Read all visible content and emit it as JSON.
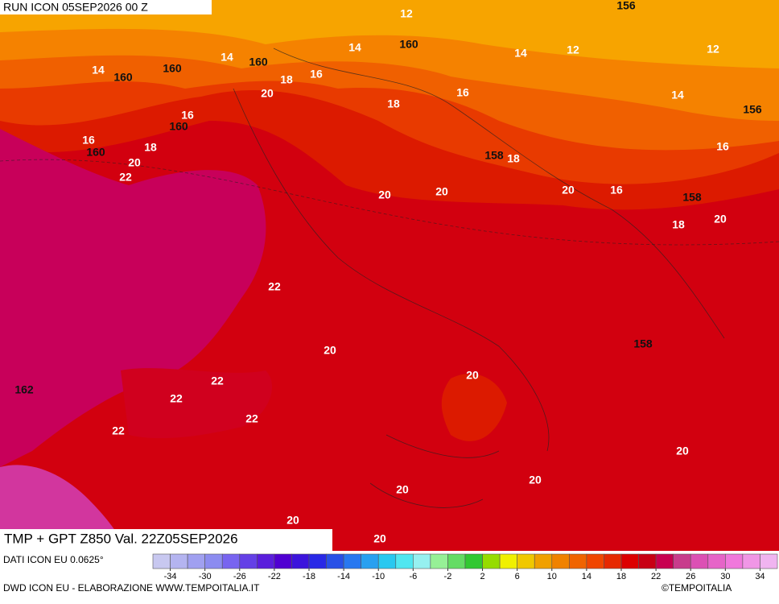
{
  "header": {
    "run": "RUN ICON 05SEP2026 00 Z"
  },
  "map": {
    "title": "TMP + GPT Z850 Val. 22Z05SEP2026",
    "temperature_labels": [
      12,
      12,
      12,
      14,
      14,
      14,
      14,
      14,
      16,
      16,
      16,
      16,
      16,
      16,
      18,
      18,
      18,
      18,
      18,
      20,
      20,
      20,
      20,
      20,
      20,
      20,
      20,
      20,
      20,
      20,
      20,
      20,
      22,
      22,
      22,
      22,
      22,
      22
    ],
    "height_labels": [
      156,
      160,
      160,
      160,
      160,
      160,
      160,
      158,
      158,
      158,
      156,
      162
    ]
  },
  "legend": {
    "source": "DATI ICON EU 0.0625°",
    "colors": [
      "#c8c8f0",
      "#b4b4f0",
      "#a0a0f0",
      "#8c8cf0",
      "#7864f0",
      "#6440e6",
      "#5a1edc",
      "#5000d2",
      "#3c14dc",
      "#2828e6",
      "#2850e6",
      "#2878f0",
      "#28a0f0",
      "#28c8f0",
      "#50e6f0",
      "#96f0f0",
      "#96f096",
      "#64dc64",
      "#32c832",
      "#96dc00",
      "#f0f000",
      "#f0c800",
      "#f0a000",
      "#f08200",
      "#f06400",
      "#f04600",
      "#e62800",
      "#dc0000",
      "#c80014",
      "#c80050",
      "#c83c8c",
      "#dc50b4",
      "#e664c8",
      "#f078dc",
      "#f096e6",
      "#f0b4f0"
    ],
    "ticks": [
      -34,
      -30,
      -26,
      -22,
      -18,
      -14,
      -10,
      -6,
      -2,
      2,
      6,
      10,
      14,
      18,
      22,
      26,
      30,
      34
    ]
  },
  "footer": {
    "credit": "DWD ICON EU - ELABORAZIONE WWW.TEMPOITALIA.IT",
    "copyright": "©TEMPOITALIA"
  }
}
